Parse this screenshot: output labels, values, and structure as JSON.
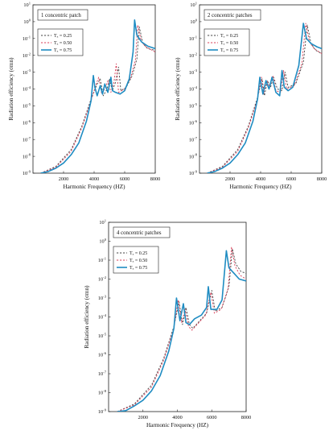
{
  "colors": {
    "series_025": "#444444",
    "series_050": "#d9425b",
    "series_075": "#1f8cc2",
    "frame": "#222222"
  },
  "chart_data": [
    {
      "type": "line",
      "title": "1 concentric patch",
      "xlabel": "Harmonic Frequency (HZ)",
      "ylabel": "Radiation efficiency (σmn)",
      "xlim": [
        0,
        8000
      ],
      "ylim_log10": [
        -9,
        1
      ],
      "y_scale": "log",
      "x_ticks": [
        "2000",
        "4000",
        "6000",
        "8000"
      ],
      "y_ticks": [
        "10^-9",
        "10^-8",
        "10^-7",
        "10^-6",
        "10^-5",
        "10^-4",
        "10^-3",
        "10^-2",
        "10^-1",
        "10^0",
        "10^1"
      ],
      "legend": [
        "Tₓ = 0.25",
        "Tₓ = 0.50",
        "Tₓ = 0.75"
      ],
      "legend_position": "upper-left",
      "series": [
        {
          "name": "Tₓ = 0.25",
          "style": "dashed-black",
          "points": [
            [
              500,
              -9
            ],
            [
              1500,
              -8.6
            ],
            [
              2500,
              -7.6
            ],
            [
              3200,
              -6.2
            ],
            [
              3800,
              -4.6
            ],
            [
              4200,
              -3.7
            ],
            [
              4400,
              -3.4
            ],
            [
              4600,
              -4.4
            ],
            [
              4850,
              -4.0
            ],
            [
              5000,
              -3.4
            ],
            [
              5200,
              -4.1
            ],
            [
              5400,
              -3.6
            ],
            [
              5600,
              -2.7
            ],
            [
              5750,
              -4.1
            ],
            [
              6100,
              -3.9
            ],
            [
              6500,
              -3.2
            ],
            [
              6800,
              -2.2
            ],
            [
              6950,
              -0.3
            ],
            [
              7200,
              -1.3
            ],
            [
              7500,
              -1.6
            ],
            [
              8000,
              -1.7
            ]
          ]
        },
        {
          "name": "Tₓ = 0.50",
          "style": "dashed-red",
          "points": [
            [
              500,
              -9
            ],
            [
              1500,
              -8.65
            ],
            [
              2500,
              -7.7
            ],
            [
              3200,
              -6.3
            ],
            [
              3800,
              -4.7
            ],
            [
              4100,
              -3.8
            ],
            [
              4300,
              -3.3
            ],
            [
              4500,
              -4.3
            ],
            [
              4750,
              -3.9
            ],
            [
              4900,
              -3.5
            ],
            [
              5100,
              -4.2
            ],
            [
              5300,
              -3.6
            ],
            [
              5450,
              -2.5
            ],
            [
              5600,
              -4.2
            ],
            [
              6000,
              -4.0
            ],
            [
              6400,
              -3.3
            ],
            [
              6700,
              -2.3
            ],
            [
              6850,
              -0.2
            ],
            [
              7100,
              -1.2
            ],
            [
              7400,
              -1.5
            ],
            [
              8000,
              -1.8
            ]
          ]
        },
        {
          "name": "Tₓ = 0.75",
          "style": "solid-blue",
          "points": [
            [
              500,
              -9
            ],
            [
              1000,
              -8.9
            ],
            [
              1500,
              -8.7
            ],
            [
              2000,
              -8.4
            ],
            [
              2500,
              -7.9
            ],
            [
              3000,
              -7.2
            ],
            [
              3500,
              -5.9
            ],
            [
              3800,
              -4.7
            ],
            [
              3950,
              -3.2
            ],
            [
              4050,
              -3.9
            ],
            [
              4200,
              -4.4
            ],
            [
              4400,
              -3.8
            ],
            [
              4550,
              -4.3
            ],
            [
              4700,
              -3.7
            ],
            [
              4900,
              -4.2
            ],
            [
              5100,
              -3.3
            ],
            [
              5200,
              -4.1
            ],
            [
              5400,
              -4.2
            ],
            [
              5700,
              -4.3
            ],
            [
              6000,
              -4.1
            ],
            [
              6300,
              -3.4
            ],
            [
              6550,
              -1.8
            ],
            [
              6650,
              0.1
            ],
            [
              6800,
              -0.8
            ],
            [
              7100,
              -1.2
            ],
            [
              7500,
              -1.45
            ],
            [
              8000,
              -1.6
            ]
          ]
        }
      ]
    },
    {
      "type": "line",
      "title": "2 concentric patches",
      "xlabel": "Harmonic Frequency (HZ)",
      "ylabel": "Radiation efficiency (σmn)",
      "xlim": [
        0,
        8000
      ],
      "ylim_log10": [
        -9,
        1
      ],
      "y_scale": "log",
      "x_ticks": [
        "2000",
        "4000",
        "6000",
        "8000"
      ],
      "y_ticks": [
        "10^-9",
        "10^-8",
        "10^-7",
        "10^-6",
        "10^-5",
        "10^-4",
        "10^-3",
        "10^-2",
        "10^-1",
        "10^0",
        "10^1"
      ],
      "legend": [
        "Tₓ = 0.25",
        "Tₓ = 0.50",
        "Tₓ = 0.75"
      ],
      "legend_position": "upper-left",
      "series": [
        {
          "name": "Tₓ = 0.25",
          "style": "dashed-black",
          "points": [
            [
              500,
              -9
            ],
            [
              1500,
              -8.6
            ],
            [
              2500,
              -7.6
            ],
            [
              3200,
              -6.2
            ],
            [
              3800,
              -4.5
            ],
            [
              4100,
              -3.4
            ],
            [
              4250,
              -4.4
            ],
            [
              4450,
              -3.5
            ],
            [
              4650,
              -3.9
            ],
            [
              4850,
              -3.3
            ],
            [
              5100,
              -4.0
            ],
            [
              5400,
              -4.1
            ],
            [
              5600,
              -3.0
            ],
            [
              5800,
              -3.9
            ],
            [
              6300,
              -3.7
            ],
            [
              6800,
              -2.4
            ],
            [
              7050,
              -0.2
            ],
            [
              7300,
              -1.3
            ],
            [
              7600,
              -1.7
            ],
            [
              8000,
              -1.9
            ]
          ]
        },
        {
          "name": "Tₓ = 0.50",
          "style": "dashed-red",
          "points": [
            [
              500,
              -9
            ],
            [
              1500,
              -8.65
            ],
            [
              2500,
              -7.7
            ],
            [
              3200,
              -6.3
            ],
            [
              3800,
              -4.6
            ],
            [
              4050,
              -3.3
            ],
            [
              4200,
              -4.3
            ],
            [
              4400,
              -3.5
            ],
            [
              4600,
              -3.9
            ],
            [
              4800,
              -3.2
            ],
            [
              5000,
              -4.1
            ],
            [
              5300,
              -4.2
            ],
            [
              5500,
              -2.9
            ],
            [
              5700,
              -4.0
            ],
            [
              6200,
              -3.8
            ],
            [
              6700,
              -2.5
            ],
            [
              6950,
              -0.1
            ],
            [
              7200,
              -1.2
            ],
            [
              7500,
              -1.6
            ],
            [
              8000,
              -1.9
            ]
          ]
        },
        {
          "name": "Tₓ = 0.75",
          "style": "solid-blue",
          "points": [
            [
              500,
              -9
            ],
            [
              1000,
              -8.9
            ],
            [
              1500,
              -8.7
            ],
            [
              2000,
              -8.4
            ],
            [
              2500,
              -7.9
            ],
            [
              3000,
              -7.2
            ],
            [
              3500,
              -5.9
            ],
            [
              3800,
              -4.6
            ],
            [
              3950,
              -3.3
            ],
            [
              4150,
              -4.3
            ],
            [
              4350,
              -3.5
            ],
            [
              4550,
              -4.0
            ],
            [
              4750,
              -3.3
            ],
            [
              5000,
              -4.2
            ],
            [
              5250,
              -4.4
            ],
            [
              5400,
              -2.9
            ],
            [
              5550,
              -3.9
            ],
            [
              5800,
              -4.1
            ],
            [
              6100,
              -3.9
            ],
            [
              6500,
              -2.6
            ],
            [
              6800,
              -0.1
            ],
            [
              7000,
              -1.0
            ],
            [
              7300,
              -1.3
            ],
            [
              7700,
              -1.5
            ],
            [
              8000,
              -1.6
            ]
          ]
        }
      ]
    },
    {
      "type": "line",
      "title": "4 concentric patches",
      "xlabel": "Harmonic Frequency (HZ)",
      "ylabel": "Radiation efficiency (σmn)",
      "xlim": [
        0,
        8000
      ],
      "ylim_log10": [
        -9,
        1
      ],
      "y_scale": "log",
      "x_ticks": [
        "2000",
        "4000",
        "6000",
        "8000"
      ],
      "y_ticks": [
        "10^-9",
        "10^-8",
        "10^-7",
        "10^-6",
        "10^-5",
        "10^-4",
        "10^-3",
        "10^-2",
        "10^-1",
        "10^0",
        "10^1"
      ],
      "legend": [
        "Tₓ = 0.25",
        "Tₓ = 0.50",
        "Tₓ = 0.75"
      ],
      "legend_position": "upper-left",
      "series": [
        {
          "name": "Tₓ = 0.25",
          "style": "dashed-black",
          "points": [
            [
              500,
              -9
            ],
            [
              1500,
              -8.6
            ],
            [
              2500,
              -7.6
            ],
            [
              3200,
              -6.2
            ],
            [
              3800,
              -4.5
            ],
            [
              4100,
              -3.2
            ],
            [
              4300,
              -4.4
            ],
            [
              4500,
              -3.5
            ],
            [
              4700,
              -4.4
            ],
            [
              4900,
              -4.6
            ],
            [
              5300,
              -4.2
            ],
            [
              5700,
              -3.8
            ],
            [
              6000,
              -2.6
            ],
            [
              6200,
              -3.7
            ],
            [
              6600,
              -3.5
            ],
            [
              7000,
              -2.4
            ],
            [
              7200,
              -0.4
            ],
            [
              7400,
              -1.2
            ],
            [
              7700,
              -1.6
            ],
            [
              8000,
              -1.7
            ]
          ]
        },
        {
          "name": "Tₓ = 0.50",
          "style": "dashed-red",
          "points": [
            [
              500,
              -9
            ],
            [
              1500,
              -8.65
            ],
            [
              2500,
              -7.7
            ],
            [
              3200,
              -6.3
            ],
            [
              3800,
              -4.6
            ],
            [
              4050,
              -3.1
            ],
            [
              4250,
              -4.3
            ],
            [
              4450,
              -3.6
            ],
            [
              4650,
              -4.5
            ],
            [
              4850,
              -4.7
            ],
            [
              5250,
              -4.3
            ],
            [
              5650,
              -3.9
            ],
            [
              5950,
              -2.7
            ],
            [
              6150,
              -3.8
            ],
            [
              6550,
              -3.6
            ],
            [
              6950,
              -2.5
            ],
            [
              7150,
              -0.3
            ],
            [
              7350,
              -1.3
            ],
            [
              7650,
              -1.8
            ],
            [
              8000,
              -2.0
            ]
          ]
        },
        {
          "name": "Tₓ = 0.75",
          "style": "solid-blue",
          "points": [
            [
              500,
              -9
            ],
            [
              1000,
              -8.95
            ],
            [
              1500,
              -8.7
            ],
            [
              2000,
              -8.4
            ],
            [
              2500,
              -7.9
            ],
            [
              3000,
              -7.1
            ],
            [
              3500,
              -5.8
            ],
            [
              3800,
              -4.6
            ],
            [
              3950,
              -3.0
            ],
            [
              4150,
              -4.2
            ],
            [
              4350,
              -3.3
            ],
            [
              4500,
              -4.3
            ],
            [
              4700,
              -4.4
            ],
            [
              5000,
              -4.1
            ],
            [
              5400,
              -3.9
            ],
            [
              5700,
              -3.5
            ],
            [
              5800,
              -2.4
            ],
            [
              5950,
              -3.6
            ],
            [
              6300,
              -3.6
            ],
            [
              6600,
              -3.1
            ],
            [
              6850,
              -0.5
            ],
            [
              7000,
              -1.4
            ],
            [
              7300,
              -1.7
            ],
            [
              7600,
              -2.0
            ],
            [
              8000,
              -2.1
            ]
          ]
        }
      ]
    }
  ]
}
